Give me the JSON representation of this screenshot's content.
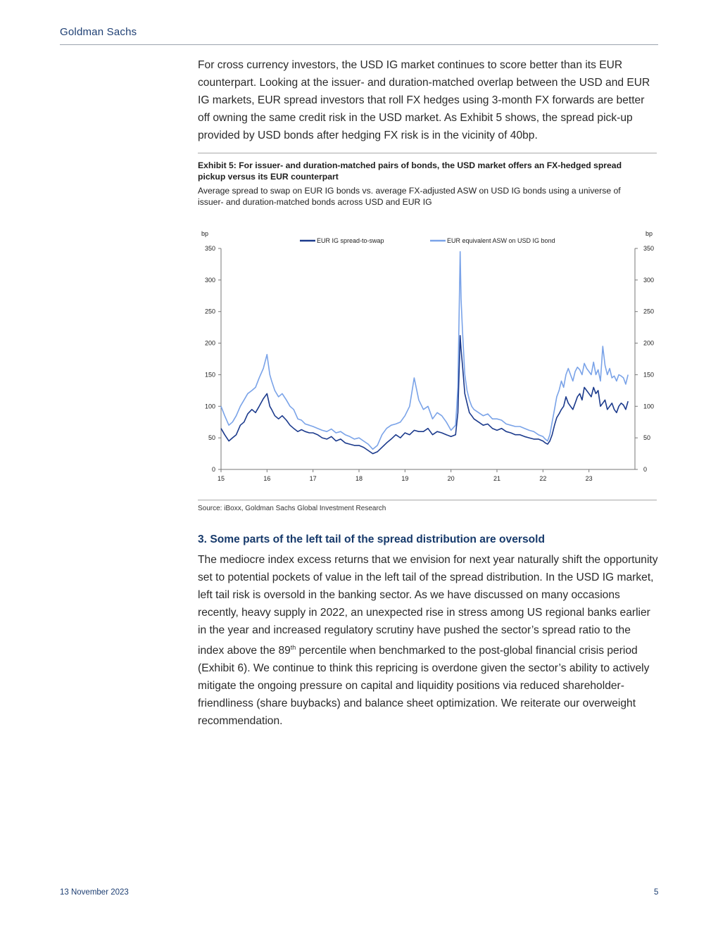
{
  "header": {
    "brand": "Goldman Sachs"
  },
  "paragraph1": "For cross currency investors, the USD IG market continues to score better than its EUR counterpart.  Looking at the issuer- and duration-matched overlap between the USD and EUR IG markets, EUR spread investors that roll FX hedges using 3-month FX forwards are better off owning the same credit risk in the USD market. As Exhibit 5 shows, the spread pick-up provided by USD bonds after hedging FX risk is in the vicinity of 40bp.",
  "exhibit": {
    "title": "Exhibit 5: For issuer- and duration-matched pairs of bonds, the USD market offers an FX-hedged spread pickup versus its EUR counterpart",
    "subtitle": "Average spread to swap on EUR IG bonds vs. average FX-adjusted ASW on USD IG bonds using a universe of issuer- and duration-matched bonds across USD and EUR IG",
    "source": "Source: iBoxx, Goldman Sachs Global Investment Research"
  },
  "chart_data": {
    "type": "line",
    "ylabel_left": "bp",
    "ylabel_right": "bp",
    "ylim": [
      0,
      350
    ],
    "yticks": [
      0,
      50,
      100,
      150,
      200,
      250,
      300,
      350
    ],
    "xlim": [
      15,
      24
    ],
    "xticks": [
      "15",
      "16",
      "17",
      "18",
      "19",
      "20",
      "21",
      "22",
      "23"
    ],
    "legend_position": "top",
    "series": [
      {
        "name": "EUR IG spread-to-swap",
        "color": "#1b3a8c",
        "x": [
          15.0,
          15.08,
          15.17,
          15.25,
          15.33,
          15.42,
          15.5,
          15.58,
          15.67,
          15.75,
          15.83,
          15.92,
          16.0,
          16.06,
          16.1,
          16.17,
          16.25,
          16.33,
          16.42,
          16.5,
          16.58,
          16.67,
          16.75,
          16.83,
          16.92,
          17.0,
          17.1,
          17.2,
          17.3,
          17.4,
          17.5,
          17.6,
          17.7,
          17.8,
          17.9,
          18.0,
          18.1,
          18.2,
          18.3,
          18.4,
          18.5,
          18.6,
          18.7,
          18.8,
          18.9,
          19.0,
          19.1,
          19.2,
          19.3,
          19.4,
          19.5,
          19.6,
          19.7,
          19.8,
          19.9,
          20.0,
          20.1,
          20.15,
          20.2,
          20.22,
          20.25,
          20.3,
          20.35,
          20.4,
          20.45,
          20.5,
          20.6,
          20.7,
          20.8,
          20.9,
          21.0,
          21.1,
          21.2,
          21.3,
          21.4,
          21.5,
          21.6,
          21.7,
          21.8,
          21.9,
          22.0,
          22.05,
          22.1,
          22.15,
          22.2,
          22.25,
          22.3,
          22.35,
          22.4,
          22.45,
          22.5,
          22.55,
          22.6,
          22.65,
          22.7,
          22.75,
          22.8,
          22.85,
          22.9,
          22.95,
          23.0,
          23.05,
          23.1,
          23.15,
          23.2,
          23.25,
          23.3,
          23.35,
          23.4,
          23.45,
          23.5,
          23.55,
          23.6,
          23.65,
          23.7,
          23.75,
          23.8,
          23.85
        ],
        "values": [
          65,
          55,
          45,
          50,
          55,
          70,
          75,
          88,
          95,
          90,
          100,
          112,
          120,
          100,
          95,
          85,
          80,
          85,
          78,
          70,
          65,
          60,
          63,
          60,
          58,
          58,
          55,
          50,
          48,
          52,
          45,
          48,
          42,
          40,
          38,
          38,
          35,
          30,
          25,
          28,
          35,
          42,
          48,
          55,
          50,
          58,
          55,
          62,
          60,
          60,
          65,
          55,
          60,
          58,
          55,
          52,
          55,
          90,
          212,
          190,
          165,
          120,
          105,
          90,
          85,
          80,
          75,
          70,
          72,
          65,
          62,
          65,
          60,
          58,
          55,
          55,
          52,
          50,
          48,
          48,
          45,
          42,
          40,
          45,
          55,
          70,
          82,
          88,
          95,
          100,
          115,
          105,
          100,
          95,
          105,
          115,
          120,
          110,
          130,
          125,
          120,
          115,
          130,
          120,
          125,
          100,
          105,
          110,
          95,
          100,
          105,
          95,
          90,
          100,
          105,
          102,
          95,
          108
        ]
      },
      {
        "name": "EUR equivalent ASW on USD IG bond",
        "color": "#7aa3e8",
        "x": [
          15.0,
          15.08,
          15.17,
          15.25,
          15.33,
          15.42,
          15.5,
          15.58,
          15.67,
          15.75,
          15.83,
          15.92,
          16.0,
          16.06,
          16.1,
          16.17,
          16.25,
          16.33,
          16.42,
          16.5,
          16.58,
          16.67,
          16.75,
          16.83,
          16.92,
          17.0,
          17.1,
          17.2,
          17.3,
          17.4,
          17.5,
          17.6,
          17.7,
          17.8,
          17.9,
          18.0,
          18.1,
          18.2,
          18.3,
          18.4,
          18.5,
          18.6,
          18.7,
          18.8,
          18.9,
          19.0,
          19.1,
          19.2,
          19.3,
          19.4,
          19.5,
          19.6,
          19.7,
          19.8,
          19.9,
          20.0,
          20.1,
          20.15,
          20.2,
          20.22,
          20.25,
          20.3,
          20.35,
          20.4,
          20.45,
          20.5,
          20.6,
          20.7,
          20.8,
          20.9,
          21.0,
          21.1,
          21.2,
          21.3,
          21.4,
          21.5,
          21.6,
          21.7,
          21.8,
          21.9,
          22.0,
          22.05,
          22.1,
          22.15,
          22.2,
          22.25,
          22.3,
          22.35,
          22.4,
          22.45,
          22.5,
          22.55,
          22.6,
          22.65,
          22.7,
          22.75,
          22.8,
          22.85,
          22.9,
          22.95,
          23.0,
          23.05,
          23.1,
          23.15,
          23.2,
          23.25,
          23.3,
          23.35,
          23.4,
          23.45,
          23.5,
          23.55,
          23.6,
          23.65,
          23.7,
          23.75,
          23.8,
          23.85
        ],
        "values": [
          100,
          85,
          70,
          75,
          85,
          100,
          110,
          120,
          125,
          130,
          145,
          160,
          182,
          150,
          140,
          125,
          115,
          120,
          110,
          100,
          95,
          80,
          78,
          72,
          70,
          68,
          65,
          62,
          60,
          64,
          58,
          60,
          55,
          52,
          48,
          50,
          45,
          40,
          32,
          38,
          55,
          65,
          70,
          72,
          75,
          85,
          100,
          145,
          110,
          95,
          100,
          80,
          90,
          85,
          75,
          62,
          70,
          130,
          345,
          270,
          220,
          150,
          125,
          110,
          100,
          95,
          90,
          85,
          88,
          80,
          80,
          78,
          72,
          70,
          68,
          68,
          65,
          62,
          60,
          55,
          52,
          48,
          45,
          55,
          75,
          95,
          115,
          125,
          140,
          130,
          150,
          160,
          150,
          140,
          155,
          162,
          158,
          150,
          168,
          160,
          155,
          150,
          170,
          150,
          158,
          140,
          195,
          165,
          150,
          160,
          145,
          148,
          140,
          150,
          148,
          145,
          135,
          150
        ]
      }
    ]
  },
  "section3": {
    "heading": "3. Some parts of the left tail of the spread distribution are oversold",
    "body_before_sup": "The mediocre index excess returns that we envision for next year naturally shift the opportunity set to potential pockets of value in the left tail of the spread distribution. In the USD IG market, left tail risk is oversold in the banking sector. As we have discussed on many occasions recently, heavy supply in 2022, an unexpected rise in stress among US regional banks earlier in the year and increased regulatory scrutiny have pushed the sector’s spread ratio to the index above the 89",
    "sup": "th",
    "body_after_sup": " percentile when benchmarked to the post-global financial crisis period (Exhibit 6). We continue to think this repricing is overdone given the sector’s ability to actively mitigate the ongoing pressure on capital and liquidity positions via reduced shareholder-friendliness (share buybacks) and balance sheet optimization. We reiterate our overweight recommendation."
  },
  "footer": {
    "date": "13 November 2023",
    "page": "5"
  }
}
